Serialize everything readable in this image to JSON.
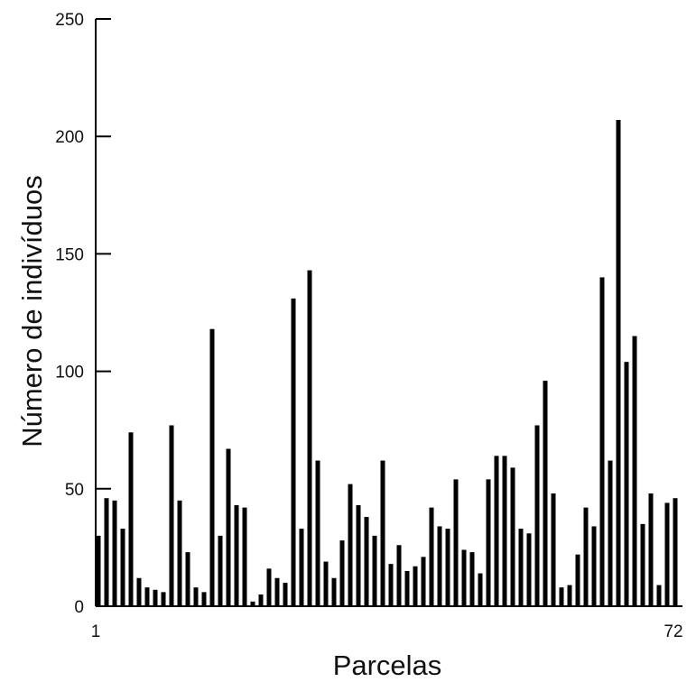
{
  "chart_data": {
    "type": "bar",
    "xlabel": "Parcelas",
    "ylabel": "Número de indivíduos",
    "ylim": [
      0,
      250
    ],
    "yticks": [
      0,
      50,
      100,
      150,
      200,
      250
    ],
    "xtick_labels": [
      "1",
      "72"
    ],
    "grid": false,
    "bar_color": "#000000",
    "categories": [
      1,
      2,
      3,
      4,
      5,
      6,
      7,
      8,
      9,
      10,
      11,
      12,
      13,
      14,
      15,
      16,
      17,
      18,
      19,
      20,
      21,
      22,
      23,
      24,
      25,
      26,
      27,
      28,
      29,
      30,
      31,
      32,
      33,
      34,
      35,
      36,
      37,
      38,
      39,
      40,
      41,
      42,
      43,
      44,
      45,
      46,
      47,
      48,
      49,
      50,
      51,
      52,
      53,
      54,
      55,
      56,
      57,
      58,
      59,
      60,
      61,
      62,
      63,
      64,
      65,
      66,
      67,
      68,
      69,
      70,
      71,
      72
    ],
    "values": [
      30,
      46,
      45,
      33,
      74,
      12,
      8,
      7,
      6,
      77,
      45,
      23,
      8,
      6,
      118,
      30,
      67,
      43,
      42,
      2,
      5,
      16,
      12,
      10,
      131,
      33,
      143,
      62,
      19,
      12,
      28,
      52,
      43,
      38,
      30,
      62,
      18,
      26,
      15,
      17,
      21,
      42,
      34,
      33,
      54,
      24,
      23,
      14,
      54,
      64,
      64,
      59,
      33,
      31,
      77,
      96,
      48,
      8,
      9,
      22,
      42,
      34,
      140,
      62,
      207,
      104,
      115,
      35,
      48,
      9,
      44,
      46
    ]
  }
}
